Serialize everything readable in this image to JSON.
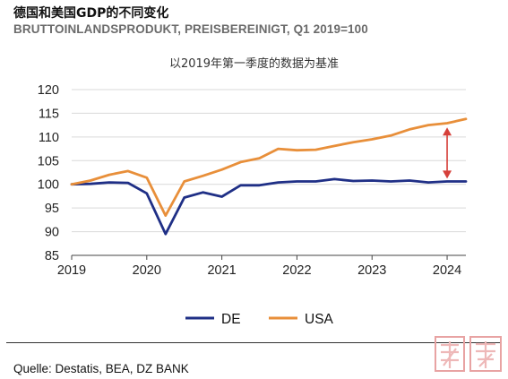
{
  "header": {
    "title": "德国和美国GDP的不同变化",
    "subtitle": "BRUTTOINLANDSPRODUKT, PREISBEREINIGT, Q1 2019=100",
    "note": "以2019年第一季度的数据为基准"
  },
  "footer": {
    "source": "Quelle: Destatis, BEA, DZ BANK"
  },
  "colors": {
    "de": "#1f2f86",
    "usa": "#e88f3a",
    "arrow": "#d6403a",
    "grid": "#d9d9d9"
  },
  "chart_data": {
    "type": "line",
    "x_start": "2019 Q1",
    "x": [
      "2019",
      "2019.25",
      "2019.5",
      "2019.75",
      "2020",
      "2020.25",
      "2020.5",
      "2020.75",
      "2021",
      "2021.25",
      "2021.5",
      "2021.75",
      "2022",
      "2022.25",
      "2022.5",
      "2022.75",
      "2023",
      "2023.25",
      "2023.5",
      "2023.75",
      "2024",
      "2024.25"
    ],
    "x_tick_labels": [
      "2019",
      "2020",
      "2021",
      "2022",
      "2023",
      "2024"
    ],
    "y_ticks": [
      85,
      90,
      95,
      100,
      105,
      110,
      115,
      120
    ],
    "ylim": [
      85,
      120
    ],
    "grid": "horizontal",
    "legend_position": "bottom",
    "series": [
      {
        "name": "DE",
        "values": [
          100.0,
          100.1,
          100.4,
          100.3,
          98.1,
          89.5,
          97.2,
          98.3,
          97.4,
          99.8,
          99.8,
          100.4,
          100.6,
          100.6,
          101.1,
          100.7,
          100.8,
          100.6,
          100.8,
          100.4,
          100.6,
          100.6
        ]
      },
      {
        "name": "USA",
        "values": [
          100.0,
          100.8,
          102.0,
          102.8,
          101.4,
          93.4,
          100.6,
          101.8,
          103.1,
          104.7,
          105.5,
          107.5,
          107.2,
          107.3,
          108.1,
          108.9,
          109.5,
          110.3,
          111.6,
          112.5,
          112.9,
          113.8
        ]
      }
    ],
    "annotation": {
      "type": "double-arrow",
      "x": "2024",
      "from": 101.2,
      "to": 112.0
    }
  }
}
